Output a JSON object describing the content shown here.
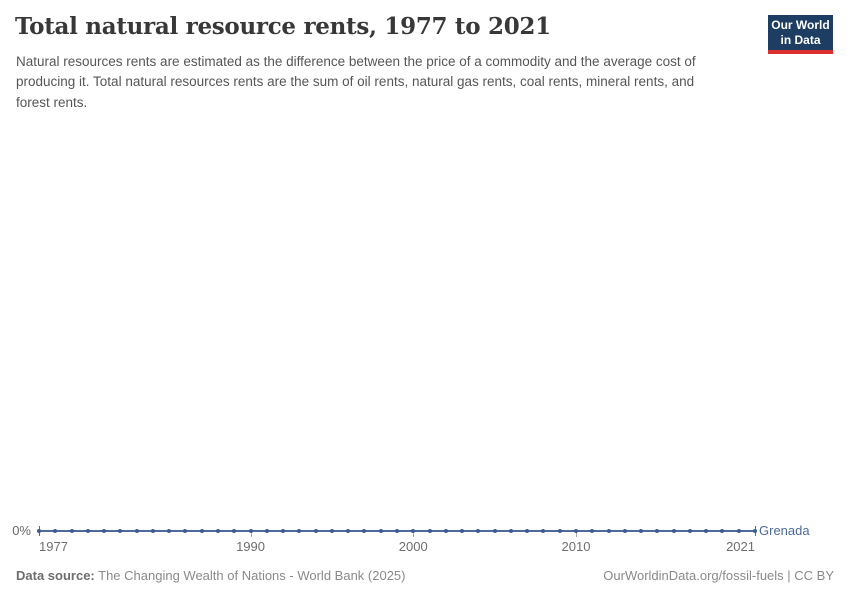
{
  "header": {
    "title": "Total natural resource rents, 1977 to 2021",
    "subtitle": "Natural resources rents are estimated as the difference between the price of a commodity and the average cost of producing it. Total natural resources rents are the sum of oil rents, natural gas rents, coal rents, mineral rents, and forest rents.",
    "logo": {
      "line1": "Our World",
      "line2": "in Data",
      "bg": "#1d3d63",
      "accent": "#dc2e2e"
    }
  },
  "chart_data": {
    "type": "line",
    "title": "Total natural resource rents, 1977 to 2021",
    "xlabel": "",
    "ylabel": "",
    "unit": "%",
    "grid": false,
    "legend_position": "right-of-line-end",
    "xlim": [
      1977,
      2021
    ],
    "x_ticks": [
      1977,
      1990,
      2000,
      2010,
      2021
    ],
    "y_ticks": [
      "0%"
    ],
    "series": [
      {
        "name": "Grenada",
        "color": "#4c6a9c",
        "point_color": "#3d5c94",
        "x": [
          1977,
          1978,
          1979,
          1980,
          1981,
          1982,
          1983,
          1984,
          1985,
          1986,
          1987,
          1988,
          1989,
          1990,
          1991,
          1992,
          1993,
          1994,
          1995,
          1996,
          1997,
          1998,
          1999,
          2000,
          2001,
          2002,
          2003,
          2004,
          2005,
          2006,
          2007,
          2008,
          2009,
          2010,
          2011,
          2012,
          2013,
          2014,
          2015,
          2016,
          2017,
          2018,
          2019,
          2020,
          2021
        ],
        "values": [
          0,
          0,
          0,
          0,
          0,
          0,
          0,
          0,
          0,
          0,
          0,
          0,
          0,
          0,
          0,
          0,
          0,
          0,
          0,
          0,
          0,
          0,
          0,
          0,
          0,
          0,
          0,
          0,
          0,
          0,
          0,
          0,
          0,
          0,
          0,
          0,
          0,
          0,
          0,
          0,
          0,
          0,
          0,
          0,
          0
        ]
      }
    ]
  },
  "footer": {
    "datasource_label": "Data source:",
    "datasource_value": "The Changing Wealth of Nations - World Bank (2025)",
    "credit": "OurWorldinData.org/fossil-fuels | CC BY"
  }
}
